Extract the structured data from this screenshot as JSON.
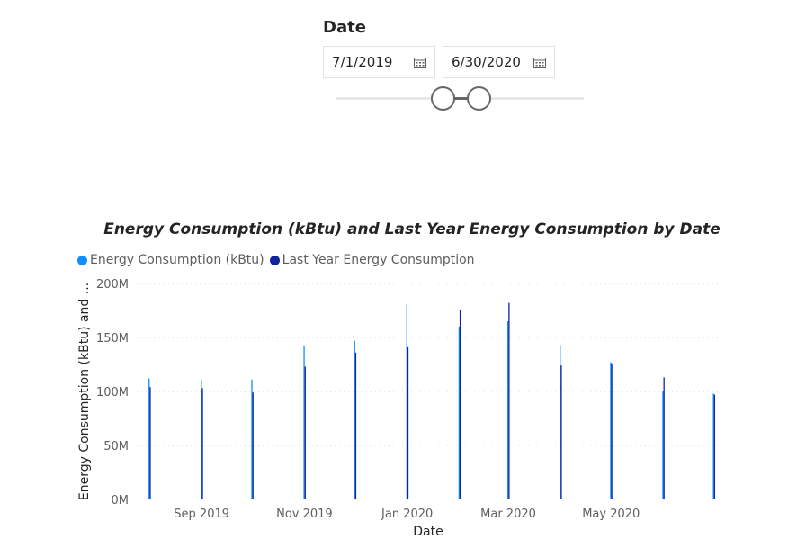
{
  "slicer": {
    "title": "Date",
    "start_date": "7/1/2019",
    "end_date": "6/30/2020",
    "calendar_icon": "calendar-icon"
  },
  "chart_data": {
    "type": "bar",
    "title": "Energy Consumption (kBtu) and Last Year Energy Consumption by Date",
    "xlabel": "Date",
    "ylabel": "Energy Consumption (kBtu) and ...",
    "ylim": [
      0,
      200000000
    ],
    "yticks": [
      "0M",
      "50M",
      "100M",
      "150M",
      "200M"
    ],
    "xlim": [
      "2019-07-25",
      "2020-07-05"
    ],
    "xticks": [
      {
        "date": "2019-09-01",
        "label": "Sep 2019"
      },
      {
        "date": "2019-11-01",
        "label": "Nov 2019"
      },
      {
        "date": "2020-01-01",
        "label": "Jan 2020"
      },
      {
        "date": "2020-03-01",
        "label": "Mar 2020"
      },
      {
        "date": "2020-05-01",
        "label": "May 2020"
      }
    ],
    "legend_position": "top-left",
    "grid": true,
    "series": [
      {
        "name": "Energy Consumption (kBtu)",
        "color": "#118dff",
        "points": [
          {
            "date": "2019-08-01",
            "value": 112000000
          },
          {
            "date": "2019-09-01",
            "value": 111000000
          },
          {
            "date": "2019-10-01",
            "value": 111000000
          },
          {
            "date": "2019-11-01",
            "value": 142000000
          },
          {
            "date": "2019-12-01",
            "value": 147000000
          },
          {
            "date": "2020-01-01",
            "value": 181000000
          },
          {
            "date": "2020-02-01",
            "value": 160000000
          },
          {
            "date": "2020-03-01",
            "value": 165000000
          },
          {
            "date": "2020-04-01",
            "value": 143000000
          },
          {
            "date": "2020-05-01",
            "value": 127000000
          },
          {
            "date": "2020-06-01",
            "value": 100000000
          },
          {
            "date": "2020-07-01",
            "value": 98000000
          }
        ]
      },
      {
        "name": "Last Year Energy Consumption",
        "color": "#12239e",
        "points": [
          {
            "date": "2019-08-01",
            "value": 104000000
          },
          {
            "date": "2019-09-01",
            "value": 103000000
          },
          {
            "date": "2019-10-01",
            "value": 99000000
          },
          {
            "date": "2019-11-01",
            "value": 123000000
          },
          {
            "date": "2019-12-01",
            "value": 136000000
          },
          {
            "date": "2020-01-01",
            "value": 141000000
          },
          {
            "date": "2020-02-01",
            "value": 175000000
          },
          {
            "date": "2020-03-01",
            "value": 182000000
          },
          {
            "date": "2020-04-01",
            "value": 124000000
          },
          {
            "date": "2020-05-01",
            "value": 126000000
          },
          {
            "date": "2020-06-01",
            "value": 113000000
          },
          {
            "date": "2020-07-01",
            "value": 97000000
          }
        ]
      }
    ]
  }
}
